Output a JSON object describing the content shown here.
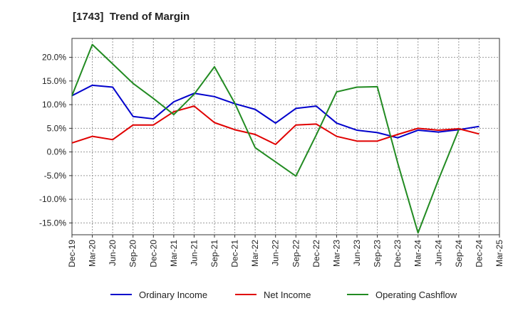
{
  "chart_data": {
    "type": "line",
    "title": "[1743]  Trend of Margin",
    "xlabel": "",
    "ylabel": "",
    "ylim": [
      -17.5,
      24
    ],
    "yticks": [
      -15,
      -10,
      -5,
      0,
      5,
      10,
      15,
      20
    ],
    "ytick_labels": [
      "-15.0%",
      "-10.0%",
      "-5.0%",
      "0.0%",
      "5.0%",
      "10.0%",
      "15.0%",
      "20.0%"
    ],
    "categories": [
      "Dec-19",
      "Mar-20",
      "Jun-20",
      "Sep-20",
      "Dec-20",
      "Mar-21",
      "Jun-21",
      "Sep-21",
      "Dec-21",
      "Mar-22",
      "Jun-22",
      "Sep-22",
      "Dec-22",
      "Mar-23",
      "Jun-23",
      "Sep-23",
      "Dec-23",
      "Mar-24",
      "Jun-24",
      "Sep-24",
      "Dec-24",
      "Mar-25"
    ],
    "grid": true,
    "legend_position": "bottom",
    "series": [
      {
        "name": "Ordinary Income",
        "color": "#0000cc",
        "values": [
          11.9,
          14.1,
          13.7,
          7.5,
          7.0,
          10.6,
          12.4,
          11.7,
          10.2,
          9.0,
          6.1,
          9.2,
          9.7,
          6.1,
          4.6,
          4.1,
          3.0,
          4.6,
          4.2,
          4.7,
          5.4,
          null
        ]
      },
      {
        "name": "Net Income",
        "color": "#e00000",
        "values": [
          1.9,
          3.3,
          2.6,
          5.7,
          5.7,
          8.5,
          9.7,
          6.2,
          4.7,
          3.7,
          1.6,
          5.7,
          5.9,
          3.3,
          2.3,
          2.3,
          3.7,
          5.0,
          4.6,
          4.9,
          3.8,
          null
        ]
      },
      {
        "name": "Operating Cashflow",
        "color": "#228b22",
        "values": [
          11.9,
          22.7,
          18.6,
          14.5,
          11.3,
          7.9,
          12.2,
          18.0,
          10.3,
          0.9,
          -2.1,
          -5.1,
          3.6,
          12.7,
          13.7,
          13.8,
          -2.3,
          -17.1,
          -5.9,
          4.7,
          null,
          null
        ]
      }
    ]
  }
}
